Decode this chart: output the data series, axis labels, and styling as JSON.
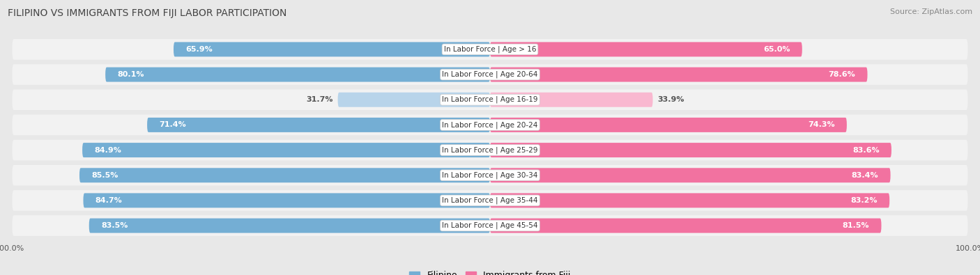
{
  "title": "FILIPINO VS IMMIGRANTS FROM FIJI LABOR PARTICIPATION",
  "source": "Source: ZipAtlas.com",
  "categories": [
    "In Labor Force | Age > 16",
    "In Labor Force | Age 20-64",
    "In Labor Force | Age 16-19",
    "In Labor Force | Age 20-24",
    "In Labor Force | Age 25-29",
    "In Labor Force | Age 30-34",
    "In Labor Force | Age 35-44",
    "In Labor Force | Age 45-54"
  ],
  "filipino_values": [
    65.9,
    80.1,
    31.7,
    71.4,
    84.9,
    85.5,
    84.7,
    83.5
  ],
  "fiji_values": [
    65.0,
    78.6,
    33.9,
    74.3,
    83.6,
    83.4,
    83.2,
    81.5
  ],
  "filipino_color": "#74aed4",
  "fiji_color": "#f272a0",
  "filipino_light_color": "#b8d4ea",
  "fiji_light_color": "#f9b8d0",
  "max_value": 100.0,
  "bg_color": "#e8e8e8",
  "row_bg_color": "#f2f2f2",
  "row_shadow_color": "#d0d0d0",
  "center_label_bg": "#ffffff",
  "legend_filipino": "Filipino",
  "legend_fiji": "Immigrants from Fiji",
  "title_fontsize": 10,
  "label_fontsize": 8,
  "source_fontsize": 8,
  "tick_fontsize": 8
}
